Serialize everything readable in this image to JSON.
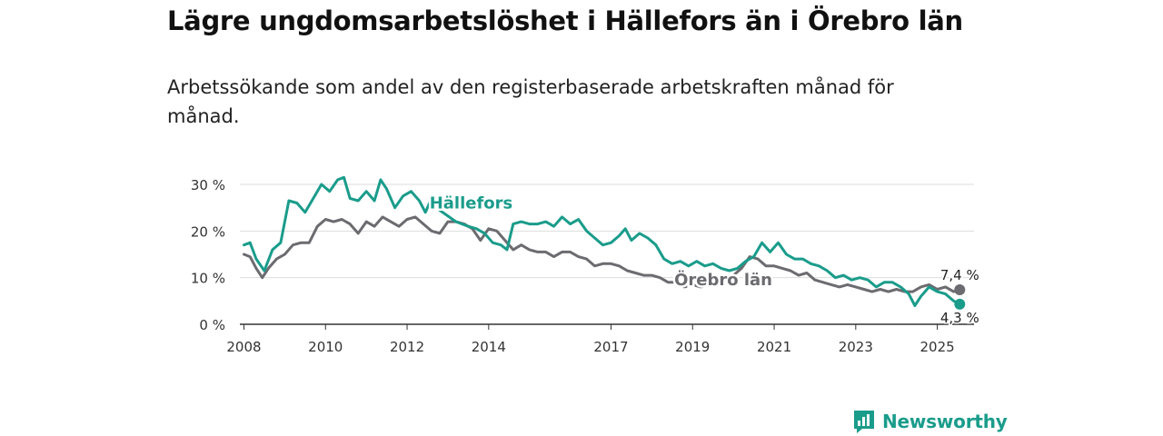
{
  "title": "Lägre ungdomsarbetslöshet i Hällefors än i Örebro län",
  "subtitle": "Arbetssökande som andel av den registerbaserade arbetskraften månad för månad.",
  "brand": {
    "name": "Newsworthy",
    "color": "#1a9c8b"
  },
  "chart_data": {
    "type": "line",
    "title": "Lägre ungdomsarbetslöshet i Hällefors än i Örebro län",
    "subtitle": "Arbetssökande som andel av den registerbaserade arbetskraften månad för månad.",
    "xlabel": "",
    "ylabel": "",
    "xlim": [
      2007.9,
      2025.9
    ],
    "ylim": [
      0,
      30
    ],
    "y_ticks": [
      0,
      10,
      20,
      30
    ],
    "y_tick_labels": [
      "0 %",
      "10 %",
      "20 %",
      "30 %"
    ],
    "x_ticks": [
      2008,
      2010,
      2012,
      2014,
      2017,
      2019,
      2021,
      2023,
      2025
    ],
    "x_tick_labels": [
      "2008",
      "2010",
      "2012",
      "2014",
      "2017",
      "2019",
      "2021",
      "2023",
      "2025"
    ],
    "grid": true,
    "legend": "inline labels",
    "series": [
      {
        "name": "Hällefors",
        "color": "#1a9c8b",
        "end_label": "4,3 %",
        "points": [
          [
            2008.0,
            17
          ],
          [
            2008.15,
            17.5
          ],
          [
            2008.3,
            14
          ],
          [
            2008.5,
            11.5
          ],
          [
            2008.7,
            16
          ],
          [
            2008.9,
            17.5
          ],
          [
            2009.1,
            26.5
          ],
          [
            2009.3,
            26
          ],
          [
            2009.5,
            24
          ],
          [
            2009.7,
            27
          ],
          [
            2009.9,
            30
          ],
          [
            2010.1,
            28.5
          ],
          [
            2010.3,
            31
          ],
          [
            2010.45,
            31.5
          ],
          [
            2010.6,
            27
          ],
          [
            2010.8,
            26.5
          ],
          [
            2011.0,
            28.5
          ],
          [
            2011.2,
            26.5
          ],
          [
            2011.35,
            31
          ],
          [
            2011.5,
            29
          ],
          [
            2011.7,
            25
          ],
          [
            2011.9,
            27.5
          ],
          [
            2012.1,
            28.5
          ],
          [
            2012.3,
            26.5
          ],
          [
            2012.45,
            24
          ],
          [
            2012.55,
            26
          ],
          [
            2013.2,
            22
          ],
          [
            2013.5,
            21
          ],
          [
            2013.7,
            20.5
          ],
          [
            2013.9,
            19.5
          ],
          [
            2014.1,
            17.5
          ],
          [
            2014.3,
            17
          ],
          [
            2014.45,
            16
          ],
          [
            2014.6,
            21.5
          ],
          [
            2014.8,
            22
          ],
          [
            2015.0,
            21.5
          ],
          [
            2015.2,
            21.5
          ],
          [
            2015.4,
            22
          ],
          [
            2015.6,
            21
          ],
          [
            2015.8,
            23
          ],
          [
            2016.0,
            21.5
          ],
          [
            2016.2,
            22.5
          ],
          [
            2016.4,
            20
          ],
          [
            2016.6,
            18.5
          ],
          [
            2016.8,
            17
          ],
          [
            2017.0,
            17.5
          ],
          [
            2017.2,
            19
          ],
          [
            2017.35,
            20.5
          ],
          [
            2017.5,
            18
          ],
          [
            2017.7,
            19.5
          ],
          [
            2017.9,
            18.5
          ],
          [
            2018.1,
            17
          ],
          [
            2018.3,
            14
          ],
          [
            2018.5,
            13
          ],
          [
            2018.7,
            13.5
          ],
          [
            2018.9,
            12.5
          ],
          [
            2019.1,
            13.5
          ],
          [
            2019.3,
            12.5
          ],
          [
            2019.5,
            13
          ],
          [
            2019.7,
            12
          ],
          [
            2019.9,
            11.5
          ],
          [
            2020.1,
            12
          ],
          [
            2020.3,
            13.5
          ],
          [
            2020.5,
            14.5
          ],
          [
            2020.7,
            17.5
          ],
          [
            2020.9,
            15.5
          ],
          [
            2021.1,
            17.5
          ],
          [
            2021.3,
            15
          ],
          [
            2021.5,
            14
          ],
          [
            2021.7,
            14
          ],
          [
            2021.9,
            13
          ],
          [
            2022.1,
            12.5
          ],
          [
            2022.3,
            11.5
          ],
          [
            2022.5,
            10
          ],
          [
            2022.7,
            10.5
          ],
          [
            2022.9,
            9.5
          ],
          [
            2023.1,
            10
          ],
          [
            2023.3,
            9.5
          ],
          [
            2023.5,
            8
          ],
          [
            2023.7,
            9
          ],
          [
            2023.9,
            9
          ],
          [
            2024.1,
            8
          ],
          [
            2024.3,
            6.5
          ],
          [
            2024.45,
            4
          ],
          [
            2024.6,
            6
          ],
          [
            2024.8,
            8
          ],
          [
            2025.0,
            7
          ],
          [
            2025.2,
            6.5
          ],
          [
            2025.4,
            5
          ],
          [
            2025.55,
            4.3
          ]
        ]
      },
      {
        "name": "Örebro län",
        "color": "#6b6b70",
        "end_label": "7,4 %",
        "points": [
          [
            2008.0,
            15
          ],
          [
            2008.15,
            14.5
          ],
          [
            2008.3,
            12
          ],
          [
            2008.45,
            10
          ],
          [
            2008.6,
            12
          ],
          [
            2008.8,
            14
          ],
          [
            2009.0,
            15
          ],
          [
            2009.2,
            17
          ],
          [
            2009.4,
            17.5
          ],
          [
            2009.6,
            17.5
          ],
          [
            2009.8,
            21
          ],
          [
            2010.0,
            22.5
          ],
          [
            2010.2,
            22
          ],
          [
            2010.4,
            22.5
          ],
          [
            2010.6,
            21.5
          ],
          [
            2010.8,
            19.5
          ],
          [
            2011.0,
            22
          ],
          [
            2011.2,
            21
          ],
          [
            2011.4,
            23
          ],
          [
            2011.6,
            22
          ],
          [
            2011.8,
            21
          ],
          [
            2012.0,
            22.5
          ],
          [
            2012.2,
            23
          ],
          [
            2012.4,
            21.5
          ],
          [
            2012.6,
            20
          ],
          [
            2012.8,
            19.5
          ],
          [
            2013.0,
            22
          ],
          [
            2013.2,
            22
          ],
          [
            2013.4,
            21.5
          ],
          [
            2013.6,
            20.5
          ],
          [
            2013.8,
            18
          ],
          [
            2014.0,
            20.5
          ],
          [
            2014.2,
            20
          ],
          [
            2014.4,
            18
          ],
          [
            2014.6,
            16
          ],
          [
            2014.8,
            17
          ],
          [
            2015.0,
            16
          ],
          [
            2015.2,
            15.5
          ],
          [
            2015.4,
            15.5
          ],
          [
            2015.6,
            14.5
          ],
          [
            2015.8,
            15.5
          ],
          [
            2016.0,
            15.5
          ],
          [
            2016.2,
            14.5
          ],
          [
            2016.4,
            14
          ],
          [
            2016.6,
            12.5
          ],
          [
            2016.8,
            13
          ],
          [
            2017.0,
            13
          ],
          [
            2017.2,
            12.5
          ],
          [
            2017.4,
            11.5
          ],
          [
            2017.6,
            11
          ],
          [
            2017.8,
            10.5
          ],
          [
            2018.0,
            10.5
          ],
          [
            2018.2,
            10
          ],
          [
            2018.4,
            9
          ],
          [
            2018.6,
            9
          ],
          [
            2018.8,
            8
          ],
          [
            2019.0,
            8.5
          ],
          [
            2019.2,
            8
          ],
          [
            2019.4,
            8.5
          ],
          [
            2019.6,
            9
          ],
          [
            2019.8,
            9.5
          ],
          [
            2020.0,
            10.5
          ],
          [
            2020.2,
            12
          ],
          [
            2020.4,
            14.5
          ],
          [
            2020.6,
            14
          ],
          [
            2020.8,
            12.5
          ],
          [
            2021.0,
            12.5
          ],
          [
            2021.2,
            12
          ],
          [
            2021.4,
            11.5
          ],
          [
            2021.6,
            10.5
          ],
          [
            2021.8,
            11
          ],
          [
            2022.0,
            9.5
          ],
          [
            2022.2,
            9
          ],
          [
            2022.4,
            8.5
          ],
          [
            2022.6,
            8
          ],
          [
            2022.8,
            8.5
          ],
          [
            2023.0,
            8
          ],
          [
            2023.2,
            7.5
          ],
          [
            2023.4,
            7
          ],
          [
            2023.6,
            7.5
          ],
          [
            2023.8,
            7
          ],
          [
            2024.0,
            7.5
          ],
          [
            2024.2,
            7
          ],
          [
            2024.4,
            7
          ],
          [
            2024.6,
            8
          ],
          [
            2024.8,
            8.5
          ],
          [
            2025.0,
            7.5
          ],
          [
            2025.2,
            8
          ],
          [
            2025.4,
            7
          ],
          [
            2025.55,
            7.4
          ]
        ]
      }
    ]
  }
}
